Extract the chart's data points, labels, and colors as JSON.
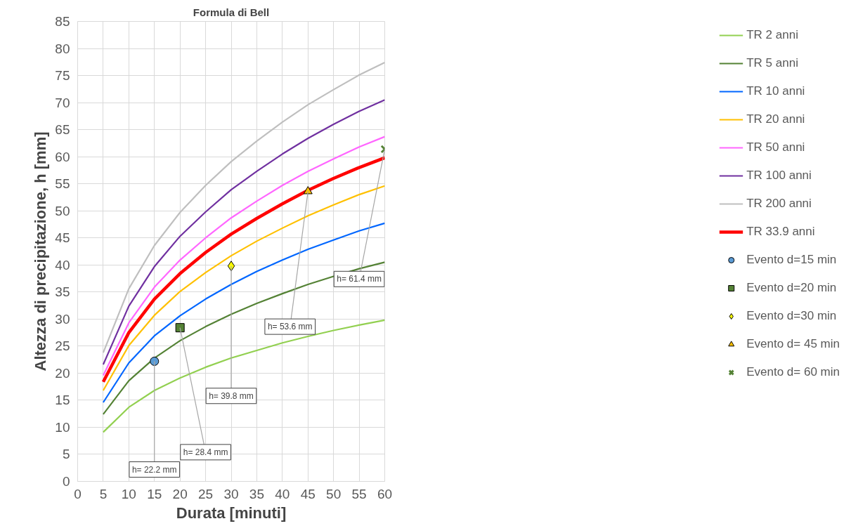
{
  "chart_data": {
    "type": "line",
    "title": "Formula di Bell",
    "xlabel": "Durata [minuti]",
    "ylabel": "Altezza di precipitazione, h [mm]",
    "x": [
      5,
      10,
      15,
      20,
      25,
      30,
      35,
      40,
      45,
      50,
      55,
      60
    ],
    "xlim": [
      0,
      60
    ],
    "ylim": [
      0,
      85
    ],
    "xticks": [
      0,
      5,
      10,
      15,
      20,
      25,
      30,
      35,
      40,
      45,
      50,
      55,
      60
    ],
    "yticks": [
      0,
      5,
      10,
      15,
      20,
      25,
      30,
      35,
      40,
      45,
      50,
      55,
      60,
      65,
      70,
      75,
      80,
      85
    ],
    "grid": true,
    "legend": "right",
    "marker": "none",
    "line_style": "solid",
    "series": [
      {
        "name": "TR 2 anni",
        "color": "#92d050",
        "values": [
          9.1,
          13.7,
          16.8,
          19.1,
          21.1,
          22.8,
          24.2,
          25.6,
          26.8,
          27.9,
          28.9,
          29.8
        ]
      },
      {
        "name": "TR 5 anni",
        "color": "#548235",
        "values": [
          12.4,
          18.6,
          22.8,
          26.0,
          28.6,
          30.9,
          32.9,
          34.7,
          36.4,
          37.9,
          39.3,
          40.5
        ]
      },
      {
        "name": "TR 10 anni",
        "color": "#0066ff",
        "values": [
          14.6,
          21.9,
          26.9,
          30.6,
          33.7,
          36.4,
          38.8,
          40.9,
          42.9,
          44.6,
          46.3,
          47.7
        ]
      },
      {
        "name": "TR 20 anni",
        "color": "#ffc000",
        "values": [
          16.8,
          25.1,
          30.7,
          35.1,
          38.6,
          41.7,
          44.4,
          46.8,
          49.1,
          51.1,
          53.0,
          54.6
        ]
      },
      {
        "name": "TR 50 anni",
        "color": "#ff66ff",
        "values": [
          19.6,
          29.3,
          35.9,
          40.9,
          45.0,
          48.7,
          51.8,
          54.7,
          57.3,
          59.6,
          61.8,
          63.7
        ]
      },
      {
        "name": "TR 100 anni",
        "color": "#7030a0",
        "values": [
          21.6,
          32.4,
          39.7,
          45.3,
          49.8,
          53.9,
          57.3,
          60.5,
          63.4,
          66.0,
          68.4,
          70.5
        ]
      },
      {
        "name": "TR 200 anni",
        "color": "#bfbfbf",
        "values": [
          23.8,
          35.6,
          43.6,
          49.7,
          54.7,
          59.1,
          62.9,
          66.4,
          69.6,
          72.4,
          75.1,
          77.4
        ]
      },
      {
        "name": "TR 33.9 anni",
        "color": "#ff0000",
        "values": [
          18.4,
          27.5,
          33.7,
          38.4,
          42.3,
          45.7,
          48.6,
          51.3,
          53.8,
          56.0,
          58.0,
          59.8
        ]
      },
      {
        "name": "Evento d=15 min",
        "type": "scatter",
        "marker": "circle",
        "color": "#5b9bd5",
        "x": [
          15
        ],
        "values": [
          22.2
        ]
      },
      {
        "name": "Evento d=20 min",
        "type": "scatter",
        "marker": "square",
        "color": "#548235",
        "x": [
          20
        ],
        "values": [
          28.4
        ]
      },
      {
        "name": "Evento d=30 min",
        "type": "scatter",
        "marker": "diamond",
        "color": "#ffff00",
        "x": [
          30
        ],
        "values": [
          39.8
        ]
      },
      {
        "name": "Evento d= 45 min",
        "type": "scatter",
        "marker": "triangle",
        "color": "#ffc000",
        "x": [
          45
        ],
        "values": [
          53.6
        ]
      },
      {
        "name": "Evento d= 60 min",
        "type": "scatter",
        "marker": "cross",
        "color": "#548235",
        "x": [
          60
        ],
        "values": [
          61.4
        ]
      }
    ],
    "annotations": [
      {
        "text": "h= 22.2 mm",
        "x": 15,
        "y": 22.2
      },
      {
        "text": "h= 28.4 mm",
        "x": 20,
        "y": 28.4
      },
      {
        "text": "h= 39.8 mm",
        "x": 30,
        "y": 39.8
      },
      {
        "text": "h= 53.6 mm",
        "x": 45,
        "y": 53.6
      },
      {
        "text": "h= 61.4 mm",
        "x": 60,
        "y": 61.4
      }
    ]
  }
}
